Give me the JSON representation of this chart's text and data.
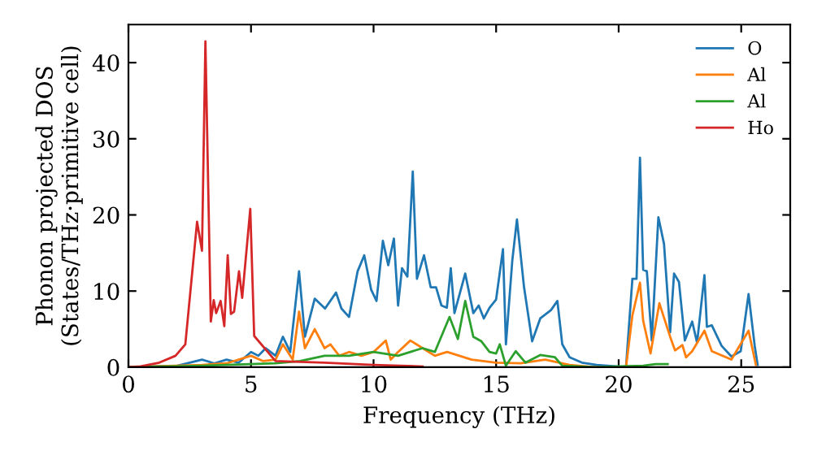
{
  "chart_data": {
    "type": "line",
    "xlabel": "Frequency (THz)",
    "ylabel": "Phonon projected DOS\n(States/THz·primitive cell)",
    "xlim": [
      0,
      27
    ],
    "ylim": [
      0,
      45
    ],
    "xticks": [
      0,
      5,
      10,
      15,
      20,
      25
    ],
    "yticks": [
      0,
      10,
      20,
      30,
      40
    ],
    "grid": false,
    "legend": "top right",
    "marker": "none",
    "line_style": "solid",
    "series": [
      {
        "name": "O",
        "color": "#1f77b4",
        "x": [
          0,
          2,
          2.5,
          3,
          3.5,
          4,
          4.5,
          5,
          5.3,
          5.6,
          6,
          6.3,
          6.6,
          6.96,
          7.2,
          7.6,
          8.02,
          8.47,
          8.69,
          9.0,
          9.35,
          9.62,
          9.9,
          10.12,
          10.38,
          10.6,
          10.83,
          11.0,
          11.16,
          11.38,
          11.6,
          11.77,
          12.06,
          12.33,
          12.55,
          12.77,
          12.99,
          13.15,
          13.3,
          13.74,
          14.07,
          14.29,
          14.5,
          14.73,
          15.0,
          15.28,
          15.4,
          15.66,
          15.85,
          16.14,
          16.47,
          16.8,
          17.24,
          17.5,
          17.7,
          18.0,
          18.5,
          19.1,
          20.3,
          20.56,
          20.73,
          20.87,
          21.0,
          21.15,
          21.35,
          21.62,
          21.85,
          22.1,
          22.26,
          22.46,
          22.7,
          23.0,
          23.2,
          23.5,
          23.6,
          23.8,
          24.2,
          24.6,
          24.98,
          25.3,
          25.55,
          25.67
        ],
        "values": [
          0,
          0.2,
          0.6,
          1.0,
          0.5,
          1.0,
          0.6,
          2.0,
          1.5,
          2.5,
          1.5,
          4.0,
          2.0,
          12.6,
          4.0,
          9.0,
          7.7,
          9.8,
          7.7,
          6.6,
          12.6,
          14.7,
          10.2,
          8.7,
          16.6,
          13.4,
          16.9,
          8.1,
          13.0,
          11.9,
          25.7,
          11.6,
          14.7,
          10.5,
          10.5,
          8.1,
          7.8,
          13.0,
          7.1,
          12.3,
          7.1,
          8.1,
          6.4,
          7.8,
          8.9,
          15.5,
          3.0,
          14.0,
          19.4,
          10.5,
          3.4,
          6.4,
          7.5,
          8.7,
          3.0,
          1.3,
          0.6,
          0.3,
          0,
          11.6,
          11.6,
          27.5,
          12.8,
          12.6,
          3.5,
          19.7,
          16.2,
          4.6,
          12.3,
          11.2,
          3.5,
          6.0,
          3.2,
          12.1,
          5.3,
          5.5,
          2.8,
          1.4,
          2.1,
          9.6,
          2.8,
          0.3
        ]
      },
      {
        "name": "Al",
        "color": "#ff7f0e",
        "x": [
          0,
          3,
          4,
          5,
          5.5,
          6,
          6.3,
          6.7,
          6.96,
          7.2,
          7.6,
          8.0,
          8.24,
          8.6,
          9.0,
          9.5,
          10.0,
          10.5,
          10.7,
          11.0,
          11.5,
          12.0,
          12.5,
          13.0,
          13.5,
          14.0,
          15.0,
          16.0,
          17.0,
          18.0,
          19.0,
          20.3,
          20.56,
          20.87,
          21.0,
          21.3,
          21.66,
          22.1,
          22.3,
          22.6,
          22.75,
          23.0,
          23.5,
          23.8,
          24.6,
          25.3,
          25.6
        ],
        "values": [
          0,
          0.3,
          0.5,
          1.5,
          0.8,
          1.0,
          3.0,
          1.0,
          7.3,
          2.5,
          5.0,
          2.5,
          3.0,
          1.5,
          2.0,
          1.5,
          2.0,
          3.5,
          1.0,
          2.0,
          3.5,
          2.5,
          1.5,
          2.0,
          1.5,
          1.0,
          0.6,
          0.5,
          1.0,
          0.3,
          0,
          0,
          6.8,
          11.1,
          6.1,
          1.8,
          8.4,
          4.0,
          2.2,
          2.9,
          1.3,
          2.1,
          4.8,
          2.1,
          1.0,
          4.8,
          0.3
        ]
      },
      {
        "name": "Al",
        "color": "#2ca02c",
        "x": [
          0,
          3,
          6,
          7,
          8,
          9,
          10,
          11,
          12,
          12.5,
          13.1,
          13.44,
          13.74,
          14.07,
          14.4,
          14.73,
          15.0,
          15.15,
          15.4,
          15.8,
          16.2,
          16.8,
          17.4,
          17.7,
          19,
          21,
          21.5,
          22
        ],
        "values": [
          0,
          0.2,
          0.5,
          0.8,
          1.5,
          1.5,
          2.0,
          1.5,
          2.5,
          2.0,
          6.6,
          3.7,
          8.7,
          4.0,
          3.4,
          2.0,
          1.8,
          3.0,
          0.2,
          2.1,
          0.6,
          1.6,
          1.3,
          0.2,
          0,
          0.2,
          0.4,
          0.4
        ]
      },
      {
        "name": "Ho",
        "color": "#d62728",
        "x": [
          0,
          0.5,
          1.26,
          1.92,
          2.32,
          2.8,
          3.0,
          3.14,
          3.36,
          3.48,
          3.58,
          3.76,
          3.91,
          4.05,
          4.18,
          4.31,
          4.51,
          4.64,
          4.97,
          5.13,
          6,
          8,
          10,
          12
        ],
        "values": [
          0,
          0.1,
          0.6,
          1.5,
          3.0,
          19.1,
          15.3,
          42.8,
          6.0,
          8.8,
          7.1,
          8.7,
          5.4,
          14.7,
          7.0,
          7.3,
          12.6,
          9.1,
          20.8,
          4.1,
          0.8,
          0.6,
          0.3,
          0.1
        ]
      }
    ]
  }
}
